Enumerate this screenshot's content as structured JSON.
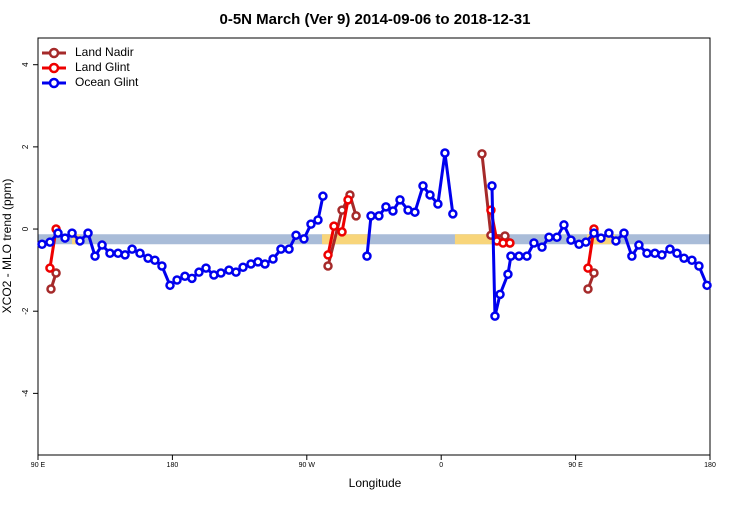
{
  "chart_data": {
    "type": "line",
    "title": "0-5N March (Ver 9)   2014-09-06 to 2018-12-31",
    "xlabel": "Longitude",
    "ylabel": "XCO2 - MLO trend (ppm)",
    "xlim": [
      90,
      540
    ],
    "ylim": [
      -5.5,
      4.65
    ],
    "xticks": [
      {
        "value": 90,
        "label": "90 E"
      },
      180,
      {
        "value": 270,
        "label": "90 W"
      },
      {
        "value": 360,
        "label": "0"
      },
      {
        "value": 450,
        "label": "90 E"
      },
      {
        "value": 540,
        "label": "180"
      }
    ],
    "yticks": [
      -4,
      -2,
      0,
      2,
      4
    ],
    "legend": "top-left",
    "band": {
      "y": -0.25,
      "color": "#a9bcd8",
      "highlight_color": "#f8d57a",
      "highlights": [
        [
          112.8,
          118.1
        ],
        [
          280.2,
          311.0
        ],
        [
          369.2,
          399.4
        ],
        [
          457.6,
          476.4
        ]
      ]
    },
    "series": [
      {
        "name": "Land Nadir",
        "color": "#a52a2a",
        "x": [
          98.7,
          102.1,
          null,
          284.2,
          293.6,
          298.9,
          303.0,
          null,
          387.3,
          393.3,
          402.7,
          406.0,
          null,
          458.3,
          462.3
        ],
        "values": [
          -1.46,
          -1.07,
          null,
          -0.9,
          0.46,
          0.83,
          0.32,
          null,
          1.83,
          -0.15,
          -0.17,
          -0.34,
          null,
          -1.46,
          -1.07
        ]
      },
      {
        "name": "Land Glint",
        "color": "#ee0000",
        "x": [
          98.0,
          102.1,
          null,
          284.2,
          288.2,
          293.6,
          297.6,
          null,
          393.3,
          397.3,
          401.4,
          406.0,
          null,
          458.3,
          462.3
        ],
        "values": [
          -0.95,
          0.0,
          null,
          -0.63,
          0.07,
          -0.07,
          0.71,
          null,
          0.46,
          -0.29,
          -0.34,
          -0.34,
          null,
          -0.95,
          0.0
        ]
      },
      {
        "name": "Ocean Glint",
        "color": "#0000ee",
        "x": [
          92.7,
          98.0,
          103.4,
          108.1,
          112.8,
          118.1,
          123.5,
          128.2,
          132.9,
          138.2,
          143.6,
          148.3,
          153.0,
          158.3,
          163.7,
          168.3,
          173.0,
          178.4,
          183.1,
          188.4,
          193.1,
          197.8,
          202.5,
          207.8,
          212.5,
          217.9,
          222.6,
          227.3,
          232.6,
          237.3,
          242.0,
          247.4,
          252.7,
          258.1,
          262.8,
          268.1,
          272.8,
          277.5,
          280.8,
          null,
          310.3,
          313.0,
          318.3,
          323.0,
          327.7,
          332.4,
          337.8,
          342.4,
          347.8,
          352.5,
          357.8,
          362.5,
          367.8,
          null,
          394.0,
          396.0,
          399.4,
          404.7,
          406.7,
          412.1,
          417.4,
          422.1,
          427.5,
          432.2,
          437.5,
          442.2,
          446.9,
          452.3,
          456.9,
          462.3,
          467.0,
          472.3,
          477.0,
          482.4,
          487.7,
          492.4,
          497.8,
          503.1,
          507.8,
          513.2,
          517.9,
          522.6,
          527.9,
          532.6,
          538.0
        ],
        "values": [
          -0.37,
          -0.32,
          -0.1,
          -0.22,
          -0.1,
          -0.29,
          -0.1,
          -0.66,
          -0.39,
          -0.59,
          -0.59,
          -0.63,
          -0.49,
          -0.59,
          -0.71,
          -0.76,
          -0.9,
          -1.37,
          -1.24,
          -1.15,
          -1.2,
          -1.05,
          -0.95,
          -1.12,
          -1.07,
          -1.0,
          -1.05,
          -0.93,
          -0.85,
          -0.8,
          -0.85,
          -0.73,
          -0.49,
          -0.49,
          -0.15,
          -0.24,
          0.12,
          0.22,
          0.8,
          null,
          -0.66,
          0.32,
          0.32,
          0.54,
          0.44,
          0.71,
          0.46,
          0.41,
          1.05,
          0.83,
          0.61,
          1.85,
          0.37,
          null,
          1.05,
          -2.12,
          -1.59,
          -1.1,
          -0.66,
          -0.66,
          -0.66,
          -0.34,
          -0.44,
          -0.2,
          -0.2,
          0.1,
          -0.27,
          -0.37,
          -0.32,
          -0.1,
          -0.22,
          -0.1,
          -0.29,
          -0.1,
          -0.66,
          -0.39,
          -0.59,
          -0.59,
          -0.63,
          -0.49,
          -0.59,
          -0.71,
          -0.76,
          -0.9,
          -1.37
        ]
      }
    ]
  }
}
